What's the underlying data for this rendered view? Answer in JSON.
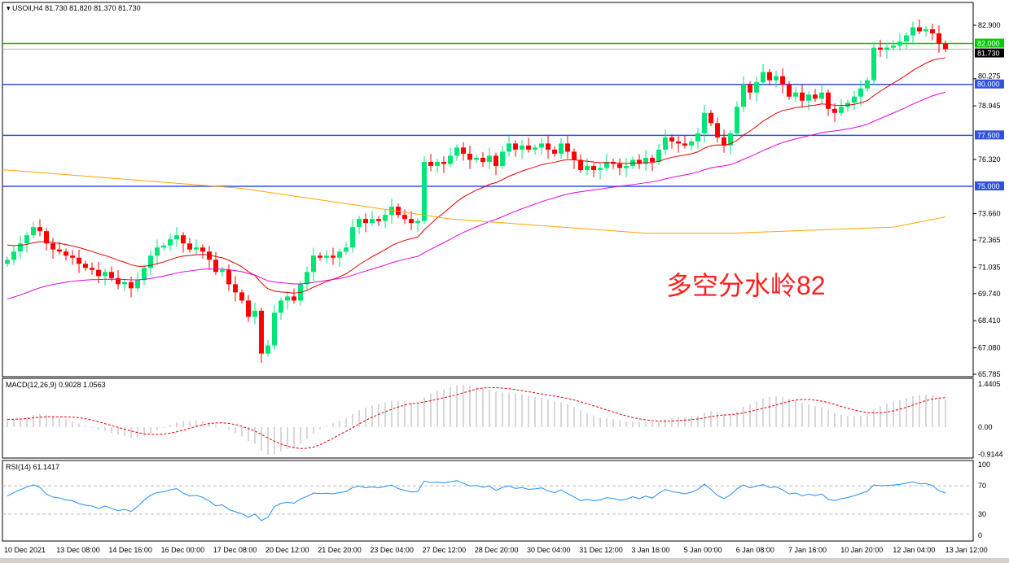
{
  "header": {
    "symbol": "USOil,H4",
    "ohlc": "81.730 81.820 81.370 81.730"
  },
  "annotation": "多空分水岭82",
  "colors": {
    "bull": "#00e676",
    "bear": "#ff0000",
    "hline_blue": "#3050e0",
    "hline_green": "#00cc00",
    "ma_fast": "#e00000",
    "ma_mid": "#e000e0",
    "ma_slow": "#ffa500",
    "rsi": "#1e90ff"
  },
  "chart_data": [
    {
      "type": "candlestick",
      "name": "USOil,H4",
      "price_ticks": [
        "82.900",
        "80.275",
        "78.945",
        "76.320",
        "73.660",
        "72.365",
        "71.035",
        "69.740",
        "68.410",
        "67.080",
        "65.785"
      ],
      "ylim": [
        65.785,
        82.9
      ],
      "time_ticks": [
        "10 Dec 2021",
        "13 Dec 08:00",
        "14 Dec 16:00",
        "16 Dec 00:00",
        "17 Dec 08:00",
        "20 Dec 12:00",
        "21 Dec 20:00",
        "23 Dec 04:00",
        "27 Dec 12:00",
        "28 Dec 20:00",
        "30 Dec 04:00",
        "31 Dec 12:00",
        "3 Jan 16:00",
        "5 Jan 00:00",
        "6 Jan 08:00",
        "7 Jan 16:00",
        "10 Jan 20:00",
        "12 Jan 04:00",
        "13 Jan 12:00"
      ],
      "horizontal_levels": [
        {
          "value": 82.0,
          "label": "82.000",
          "color": "green"
        },
        {
          "value": 80.0,
          "label": "80.000",
          "color": "blue"
        },
        {
          "value": 77.5,
          "label": "77.500",
          "color": "blue"
        },
        {
          "value": 75.0,
          "label": "75.000",
          "color": "blue"
        }
      ],
      "current_price": "81.730",
      "closes": [
        71.4,
        71.8,
        72.2,
        72.6,
        73.0,
        72.8,
        72.2,
        71.9,
        71.8,
        71.6,
        71.5,
        71.2,
        71.0,
        70.9,
        70.6,
        70.8,
        70.5,
        70.2,
        70.3,
        70.0,
        70.4,
        71.0,
        71.6,
        72.0,
        72.1,
        72.4,
        72.6,
        72.2,
        71.9,
        72.0,
        71.8,
        71.4,
        70.8,
        70.9,
        70.2,
        69.8,
        69.4,
        68.6,
        68.9,
        66.8,
        67.2,
        68.8,
        69.4,
        69.6,
        69.4,
        70.2,
        70.8,
        71.6,
        71.5,
        71.6,
        71.5,
        71.8,
        72.0,
        73.0,
        73.4,
        73.2,
        73.4,
        73.3,
        73.6,
        74.0,
        73.6,
        73.4,
        73.2,
        73.3,
        76.2,
        76.0,
        76.2,
        76.1,
        76.5,
        76.9,
        76.6,
        76.3,
        76.4,
        76.2,
        76.5,
        76.0,
        76.7,
        77.1,
        76.8,
        77.0,
        76.8,
        76.9,
        77.1,
        76.8,
        76.6,
        77.1,
        76.7,
        76.3,
        75.8,
        76.0,
        75.8,
        75.9,
        76.2,
        76.1,
        75.9,
        76.0,
        76.3,
        76.1,
        76.4,
        76.2,
        76.8,
        77.4,
        77.2,
        77.1,
        77.0,
        77.2,
        77.6,
        78.6,
        78.1,
        77.4,
        77.0,
        77.6,
        78.9,
        80.0,
        79.6,
        80.1,
        80.6,
        80.2,
        80.4,
        80.0,
        79.4,
        79.6,
        79.2,
        79.5,
        79.3,
        79.6,
        78.8,
        78.6,
        78.9,
        79.1,
        79.4,
        79.8,
        80.2,
        81.8,
        81.7,
        81.8,
        81.9,
        82.1,
        82.4,
        82.8,
        82.6,
        82.7,
        82.5,
        82.0,
        81.73
      ],
      "ma_slow_points": [
        [
          0,
          75.8
        ],
        [
          36,
          74.9
        ],
        [
          68,
          73.4
        ],
        [
          98,
          72.7
        ],
        [
          111,
          72.7
        ],
        [
          136,
          73.0
        ],
        [
          144,
          73.5
        ]
      ]
    },
    {
      "type": "macd",
      "label": "MACD(12,26,9) 0.9028 1.0563",
      "ticks": [
        "1.4405",
        "0.00",
        "-0.9144"
      ],
      "ylim": [
        -0.9144,
        1.4405
      ]
    },
    {
      "type": "line",
      "label": "RSI(14) 61.1417",
      "ticks": [
        "100",
        "70",
        "30",
        "0"
      ],
      "ylim": [
        0,
        100
      ],
      "levels": [
        70,
        30
      ]
    }
  ]
}
